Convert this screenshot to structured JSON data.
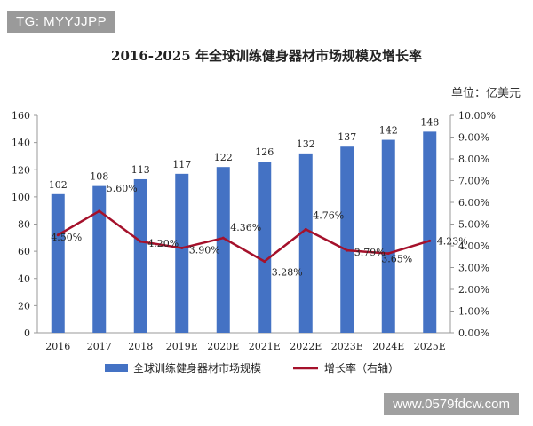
{
  "watermarks": {
    "top_left": "TG: MYYJJPP",
    "bottom_right": "www.0579fdcw.com"
  },
  "chart_data": {
    "type": "bar",
    "title": "2016-2025 年全球训练健身器材市场规模及增长率",
    "unit": "单位：亿美元",
    "categories": [
      "2016",
      "2017",
      "2018",
      "2019E",
      "2020E",
      "2021E",
      "2022E",
      "2023E",
      "2024E",
      "2025E"
    ],
    "series": [
      {
        "name": "全球训练健身器材市场规模",
        "type": "bar",
        "axis": "left",
        "color": "#4472c4",
        "values": [
          102,
          108,
          113,
          117,
          122,
          126,
          132,
          137,
          142,
          148
        ],
        "labels": [
          "102",
          "108",
          "113",
          "117",
          "122",
          "126",
          "132",
          "137",
          "142",
          "148"
        ]
      },
      {
        "name": "增长率（右轴）",
        "type": "line",
        "axis": "right",
        "color": "#a5112b",
        "values": [
          4.5,
          5.6,
          4.2,
          3.9,
          4.36,
          3.28,
          4.76,
          3.79,
          3.65,
          4.23
        ],
        "labels": [
          "4.50%",
          "5.60%",
          "4.20%",
          "3.90%",
          "4.36%",
          "3.28%",
          "4.76%",
          "3.79%",
          "3.65%",
          "4.23%"
        ]
      }
    ],
    "left_axis": {
      "ylim": [
        0,
        160
      ],
      "ticks": [
        "0",
        "20",
        "40",
        "60",
        "80",
        "100",
        "120",
        "140",
        "160"
      ]
    },
    "right_axis": {
      "ylim": [
        0,
        10
      ],
      "ticks": [
        "0.00%",
        "1.00%",
        "2.00%",
        "3.00%",
        "4.00%",
        "5.00%",
        "6.00%",
        "7.00%",
        "8.00%",
        "9.00%",
        "10.00%"
      ]
    },
    "grid": false,
    "legend": "bottom"
  }
}
